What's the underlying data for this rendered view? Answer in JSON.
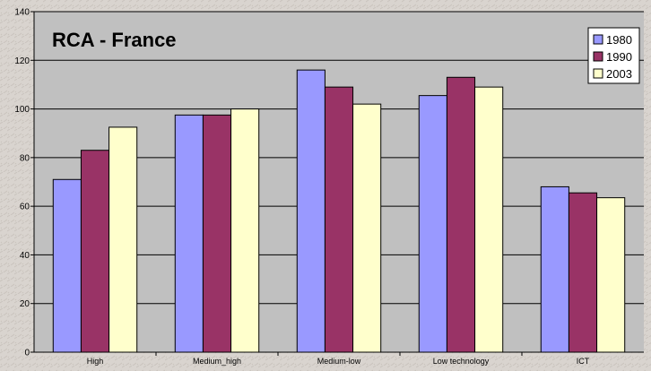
{
  "chart_data": {
    "type": "bar",
    "title": "RCA - France",
    "categories": [
      "High",
      "Medium_high",
      "Medium-low",
      "Low technology",
      "ICT"
    ],
    "series": [
      {
        "name": "1980",
        "color": "#9999ff",
        "values": [
          71,
          97.5,
          116,
          105.5,
          68
        ]
      },
      {
        "name": "1990",
        "color": "#993366",
        "values": [
          83,
          97.5,
          109,
          113,
          65.5
        ]
      },
      {
        "name": "2003",
        "color": "#ffffcc",
        "values": [
          92.5,
          100,
          102,
          109,
          63.5
        ]
      }
    ],
    "ylim": [
      0,
      140
    ],
    "yticks": [
      0,
      20,
      40,
      60,
      80,
      100,
      120,
      140
    ],
    "xlabel": "",
    "ylabel": "",
    "grid": true,
    "legend_position": "top-right",
    "plot_background": "#c0c0c0",
    "page_background": "#d9d4cf"
  }
}
